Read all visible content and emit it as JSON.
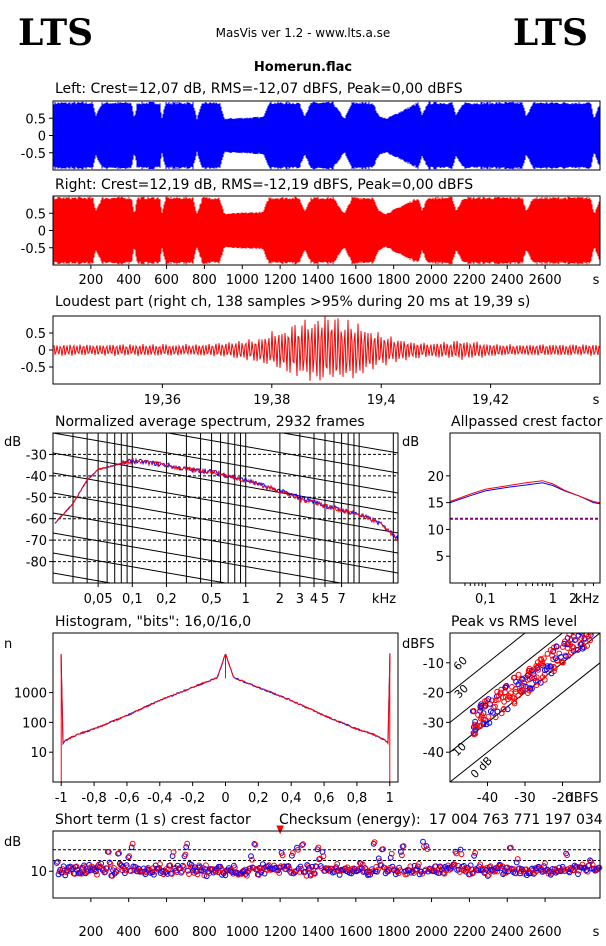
{
  "header": {
    "logo_left": "LTS",
    "logo_right": "LTS",
    "app_title": "MasVis ver 1.2 - www.lts.a.se",
    "file_name": "Homerun.flac"
  },
  "colors": {
    "left": "#0000ff",
    "right": "#ff0000",
    "axis": "#000000"
  },
  "chart_data": [
    {
      "id": "left_waveform",
      "type": "area",
      "title": "Left: Crest=12,07 dB, RMS=-12,07 dBFS, Peak=0,00 dBFS",
      "y_ticks": [
        "0.5",
        "0",
        "-0.5"
      ],
      "ylim": [
        -1,
        1
      ],
      "xlim": [
        0,
        2890
      ],
      "envelope_breakpoints_s": [
        [
          0,
          0.98
        ],
        [
          210,
          0.98
        ],
        [
          225,
          0.6
        ],
        [
          260,
          0.98
        ],
        [
          415,
          0.98
        ],
        [
          430,
          0.5
        ],
        [
          445,
          0.98
        ],
        [
          565,
          0.98
        ],
        [
          575,
          0.5
        ],
        [
          595,
          0.98
        ],
        [
          740,
          0.98
        ],
        [
          760,
          0.5
        ],
        [
          790,
          0.98
        ],
        [
          880,
          0.98
        ],
        [
          905,
          0.5
        ],
        [
          1110,
          0.55
        ],
        [
          1140,
          0.98
        ],
        [
          1300,
          0.98
        ],
        [
          1330,
          0.6
        ],
        [
          1365,
          0.98
        ],
        [
          1480,
          0.98
        ],
        [
          1540,
          0.5
        ],
        [
          1580,
          0.98
        ],
        [
          1690,
          0.98
        ],
        [
          1720,
          0.6
        ],
        [
          1760,
          0.5
        ],
        [
          1930,
          0.98
        ],
        [
          1950,
          0.6
        ],
        [
          1980,
          0.98
        ],
        [
          2110,
          0.98
        ],
        [
          2130,
          0.6
        ],
        [
          2170,
          0.98
        ],
        [
          2480,
          0.98
        ],
        [
          2500,
          0.6
        ],
        [
          2540,
          0.98
        ],
        [
          2840,
          0.98
        ],
        [
          2860,
          0.5
        ],
        [
          2890,
          0.98
        ]
      ]
    },
    {
      "id": "right_waveform",
      "type": "area",
      "title": "Right: Crest=12,19 dB, RMS=-12,19 dBFS, Peak=0,00 dBFS",
      "y_ticks": [
        "0.5",
        "0",
        "-0.5"
      ],
      "x_ticks": [
        "200",
        "400",
        "600",
        "800",
        "1000",
        "1200",
        "1400",
        "1600",
        "1800",
        "2000",
        "2200",
        "2400",
        "2600"
      ],
      "x_unit": "s",
      "ylim": [
        -1,
        1
      ],
      "xlim": [
        0,
        2890
      ]
    },
    {
      "id": "loudest_part",
      "type": "line",
      "title": "Loudest part (right ch, 138 samples >95% during 20 ms at 19,39 s)",
      "x_ticks": [
        "19,36",
        "19,38",
        "19,4",
        "19,42"
      ],
      "x_unit": "s",
      "y_ticks": [
        "0.5",
        "0",
        "-0.5"
      ],
      "xlim": [
        19.34,
        19.44
      ],
      "ylim": [
        -1,
        1
      ]
    },
    {
      "id": "spectrum",
      "type": "line",
      "title": "Normalized average spectrum, 2932 frames",
      "ylabel": "dB",
      "y_ticks": [
        "-30",
        "-40",
        "-50",
        "-60",
        "-70",
        "-80"
      ],
      "x_ticks": [
        "0,05",
        "0,1",
        "0,2",
        "0,5",
        "1",
        "2",
        "3",
        "4",
        "5",
        "7"
      ],
      "x_unit": "kHz",
      "ylim": [
        -90,
        -20
      ],
      "xlim_khz": [
        0.02,
        22
      ],
      "series": [
        {
          "name": "Left",
          "x": [
            0.02,
            0.03,
            0.04,
            0.05,
            0.07,
            0.1,
            0.15,
            0.2,
            0.3,
            0.5,
            0.7,
            1,
            1.5,
            2,
            3,
            4,
            5,
            7,
            10,
            15,
            22
          ],
          "y": [
            -63,
            -53,
            -42,
            -37,
            -35,
            -33,
            -34,
            -35,
            -37,
            -38,
            -40,
            -42,
            -45,
            -47,
            -50,
            -52,
            -54,
            -56,
            -58,
            -62,
            -69
          ]
        },
        {
          "name": "Right",
          "x": [
            0.02,
            0.03,
            0.04,
            0.05,
            0.07,
            0.1,
            0.15,
            0.2,
            0.3,
            0.5,
            0.7,
            1,
            1.5,
            2,
            3,
            4,
            5,
            7,
            10,
            15,
            22
          ],
          "y": [
            -63,
            -53,
            -42,
            -37,
            -35,
            -33,
            -34,
            -35,
            -37,
            -38,
            -40,
            -42,
            -45,
            -47,
            -51,
            -52,
            -54,
            -56,
            -58,
            -62,
            -70
          ]
        }
      ]
    },
    {
      "id": "allpassed_crest",
      "type": "line",
      "title": "Allpassed crest factor",
      "ylabel": "dB",
      "y_ticks": [
        "20",
        "15",
        "10",
        "5"
      ],
      "x_ticks": [
        "0,1",
        "1",
        "2"
      ],
      "x_unit": "kHz",
      "ylim": [
        0,
        28
      ],
      "xlim_khz": [
        0.03,
        5
      ],
      "reference_db": 12,
      "series": [
        {
          "name": "Left",
          "x": [
            0.03,
            0.06,
            0.1,
            0.2,
            0.4,
            0.7,
            1,
            1.5,
            2.5,
            4,
            5
          ],
          "y": [
            15,
            16.3,
            17.2,
            17.8,
            18.3,
            18.7,
            18.2,
            17.2,
            16.2,
            15,
            14.8
          ]
        },
        {
          "name": "Right",
          "x": [
            0.03,
            0.06,
            0.1,
            0.2,
            0.4,
            0.7,
            1,
            1.5,
            2.5,
            4,
            5
          ],
          "y": [
            15.2,
            16.6,
            17.5,
            18.1,
            18.7,
            19.1,
            18.5,
            17.3,
            16.2,
            15.2,
            15
          ]
        }
      ]
    },
    {
      "id": "histogram",
      "type": "line",
      "title": "Histogram, \"bits\": 16,0/16,0",
      "ylabel": "n",
      "y_ticks": [
        "1000",
        "100",
        "10"
      ],
      "x_ticks": [
        "-1",
        "-0,8",
        "-0,6",
        "-0,4",
        "-0,2",
        "0",
        "0,2",
        "0,4",
        "0,6",
        "0,8",
        "1"
      ],
      "xlim": [
        -1.05,
        1.05
      ],
      "ylog_range": [
        1,
        100000
      ],
      "series": [
        {
          "name": "Right",
          "x": [
            -1,
            -0.99,
            -0.97,
            -0.9,
            -0.8,
            -0.6,
            -0.4,
            -0.2,
            -0.05,
            0,
            0.05,
            0.2,
            0.4,
            0.6,
            0.8,
            0.9,
            0.97,
            0.99,
            1
          ],
          "y": [
            20000,
            20,
            25,
            40,
            60,
            170,
            550,
            1500,
            3200,
            20000,
            3200,
            1500,
            550,
            170,
            60,
            40,
            25,
            20,
            20000
          ]
        }
      ]
    },
    {
      "id": "peak_vs_rms",
      "type": "scatter",
      "title": "Peak vs RMS level",
      "ylabel": "dBFS",
      "xlabel": "dBFS",
      "y_ticks": [
        "-10",
        "-20",
        "-30",
        "-40"
      ],
      "x_ticks": [
        "-40",
        "-30",
        "-20"
      ],
      "crest_line_labels": [
        "60",
        "30",
        "10",
        "0 dB"
      ],
      "xlim": [
        -50,
        -10
      ],
      "ylim": [
        -50,
        0
      ],
      "series": [
        {
          "name": "Left",
          "x": [
            -45,
            -42,
            -40,
            -38,
            -36,
            -34,
            -32,
            -30,
            -28,
            -26,
            -24,
            -22,
            -20,
            -18,
            -16,
            -14
          ],
          "y": [
            -34,
            -31,
            -30,
            -28,
            -26,
            -24,
            -22,
            -20,
            -18,
            -16,
            -14,
            -12,
            -10,
            -8,
            -6,
            -3
          ]
        },
        {
          "name": "Right",
          "x": [
            -44,
            -41,
            -39,
            -37,
            -35,
            -33,
            -31,
            -29,
            -27,
            -25,
            -23,
            -21,
            -19,
            -17,
            -15,
            -13
          ],
          "y": [
            -35,
            -32,
            -31,
            -29,
            -27,
            -25,
            -23,
            -21,
            -19,
            -17,
            -15,
            -13,
            -11,
            -9,
            -7,
            -4
          ]
        }
      ]
    },
    {
      "id": "short_term_crest",
      "type": "scatter",
      "title": "Short term (1 s) crest factor",
      "ylabel": "dB",
      "y_ticks": [
        "10"
      ],
      "x_ticks": [
        "200",
        "400",
        "600",
        "800",
        "1000",
        "1200",
        "1400",
        "1600",
        "1800",
        "2000",
        "2200",
        "2400",
        "2600"
      ],
      "x_unit": "s",
      "xlim": [
        0,
        2890
      ],
      "ylim": [
        0,
        25
      ],
      "reference_db": [
        14,
        18
      ]
    }
  ],
  "checksum": {
    "label": "Checksum (energy):",
    "value": "17 004 763 771 197 034"
  }
}
